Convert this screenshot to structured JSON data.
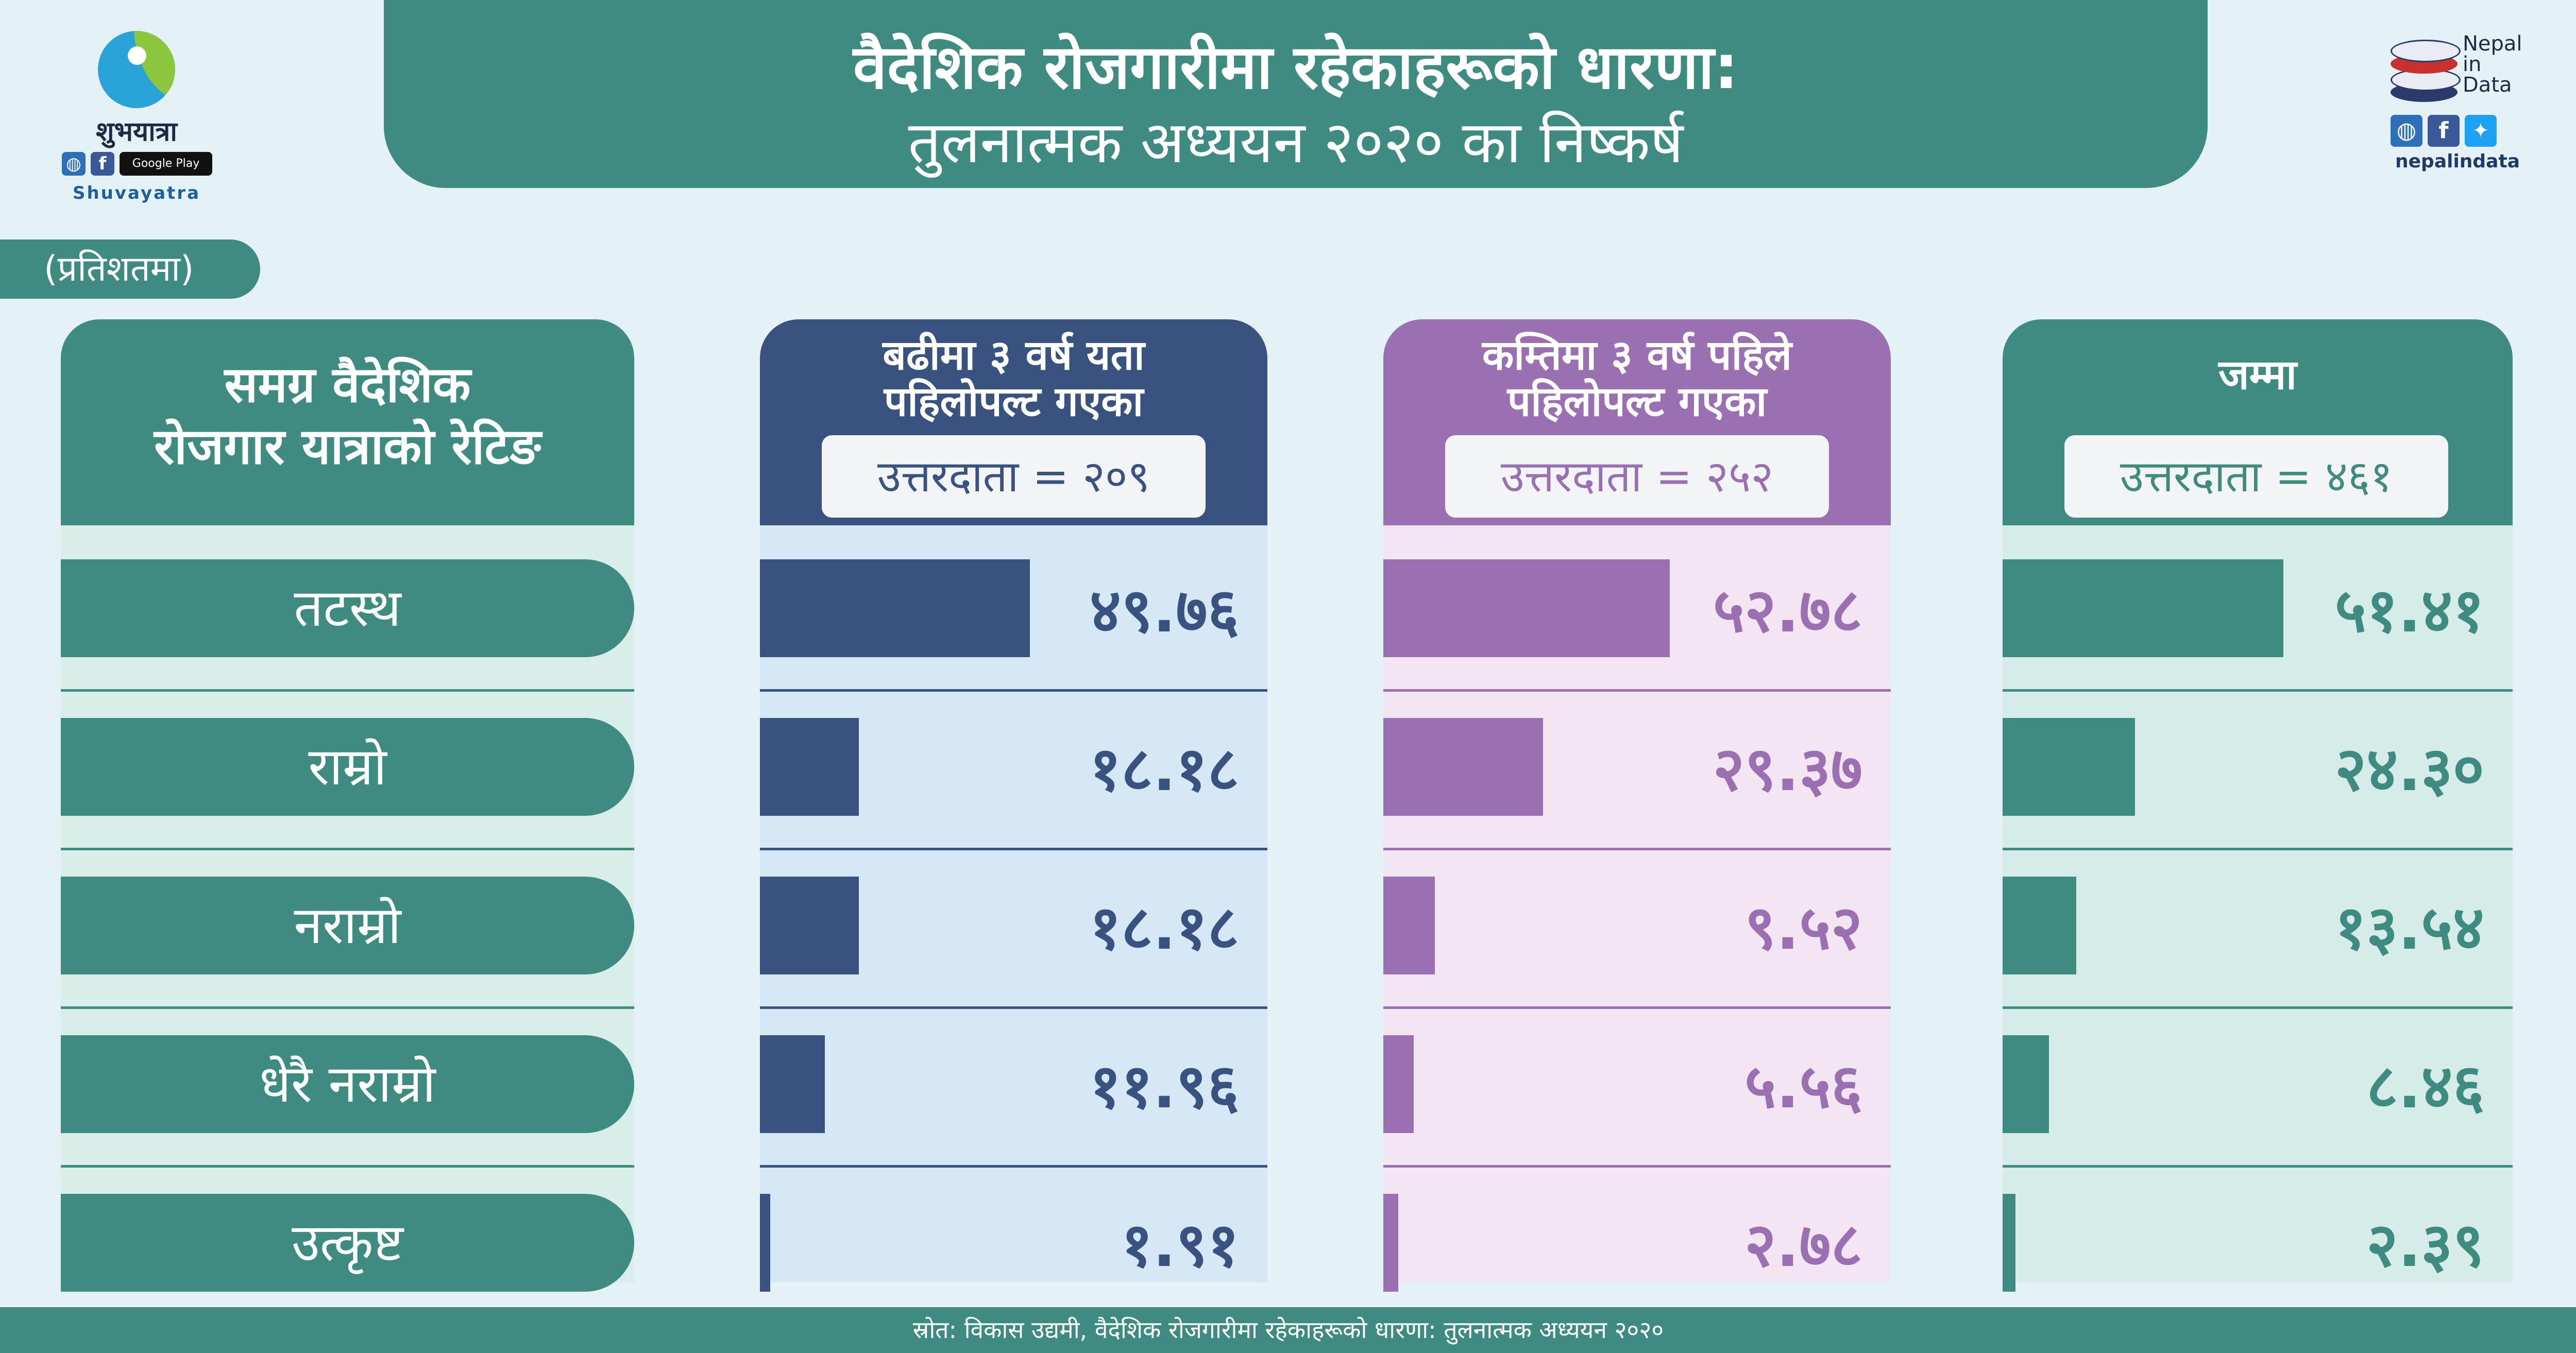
{
  "header": {
    "title_line1": "वैदेशिक रोजगारीमा रहेकाहरूको धारणा:",
    "title_line2": "तुलनात्मक अध्ययन २०२० का निष्कर्ष"
  },
  "logo_left": {
    "name": "शुभयात्रा",
    "latin": "Shuvayatra",
    "badge": "Google Play"
  },
  "logo_right": {
    "line1": "Nepal",
    "line2": "in",
    "line3": "Data",
    "handle": "nepalindata"
  },
  "unit_label": "(प्रतिशतमा)",
  "category_header": {
    "line1": "समग्र वैदेशिक",
    "line2": "रोजगार यात्राको रेटिङ"
  },
  "colors": {
    "teal": "#3f8b82",
    "navy": "#3a527f",
    "purple": "#9a70b2"
  },
  "chart_data": {
    "type": "bar",
    "orientation": "horizontal",
    "categories": [
      "तटस्थ",
      "राम्रो",
      "नराम्रो",
      "धेरै नराम्रो",
      "उत्कृष्ट"
    ],
    "series": [
      {
        "header_line1": "बढीमा ३ वर्ष यता",
        "header_line2": "पहिलोपल्ट गएका",
        "respondents": "उत्तरदाता = २०९",
        "values": [
          49.76,
          18.18,
          18.18,
          11.96,
          1.91
        ],
        "labels": [
          "४९.७६",
          "१८.१८",
          "१८.१८",
          "११.९६",
          "१.९१"
        ]
      },
      {
        "header_line1": "कम्तिमा ३ वर्ष पहिले",
        "header_line2": "पहिलोपल्ट गएका",
        "respondents": "उत्तरदाता = २५२",
        "values": [
          52.78,
          29.37,
          9.52,
          5.56,
          2.78
        ],
        "labels": [
          "५२.७८",
          "२९.३७",
          "९.५२",
          "५.५६",
          "२.७८"
        ]
      },
      {
        "header_line1": "जम्मा",
        "header_line2": "",
        "respondents": "उत्तरदाता = ४६१",
        "values": [
          51.41,
          24.3,
          13.54,
          8.46,
          2.39
        ],
        "labels": [
          "५१.४१",
          "२४.३०",
          "१३.५४",
          "८.४६",
          "२.३९"
        ]
      }
    ],
    "ylim": [
      0,
      100
    ]
  },
  "footer": {
    "source": "स्रोत: विकास उद्यमी, वैदेशिक रोजगारीमा रहेकाहरूको धारणा: तुलनात्मक अध्ययन २०२०"
  }
}
